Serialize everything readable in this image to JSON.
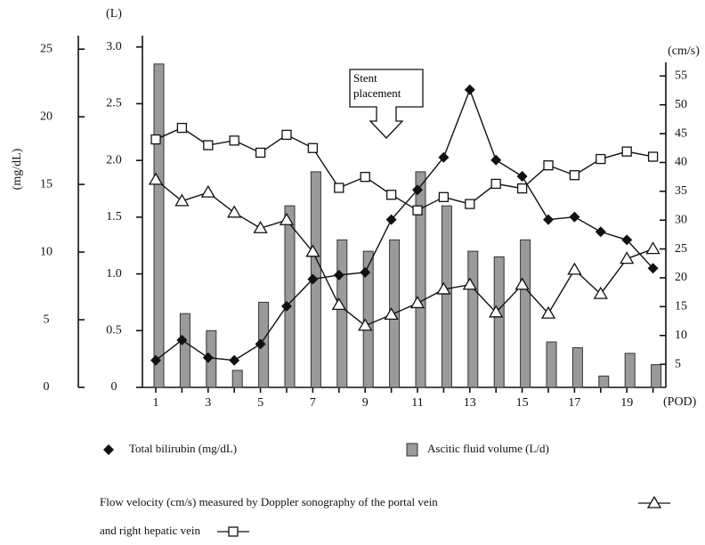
{
  "chart_data": {
    "type": "combo",
    "categories": [
      1,
      null,
      3,
      null,
      5,
      null,
      7,
      null,
      9,
      null,
      11,
      null,
      13,
      null,
      15,
      null,
      17,
      null,
      19,
      null
    ],
    "x_label": "(POD)",
    "ylabel": "(mg/dL)",
    "y3label": "(L)",
    "y2label": "(cm/s)",
    "ylim": [
      0,
      26
    ],
    "yticks": [
      0,
      5,
      10,
      15,
      20,
      25
    ],
    "y3lim": [
      0,
      3.1
    ],
    "y3ticks": [
      0,
      0.5,
      {
        "value": 1,
        "label": "1.0"
      },
      1.5,
      {
        "value": 2,
        "label": "2.0"
      },
      2.5,
      {
        "value": 3,
        "label": "3.0"
      }
    ],
    "y2lim": [
      1,
      62
    ],
    "y2ticks": [
      5,
      10,
      15,
      20,
      25,
      30,
      35,
      40,
      45,
      50,
      55
    ],
    "annotation": "Stent placement",
    "series": [
      {
        "name": "Ascitic fluid volume (L/d)",
        "type": "bar",
        "axis": "y3",
        "color": "#9a9a9a",
        "values": [
          2.85,
          0.65,
          0.5,
          0.15,
          0.75,
          1.6,
          1.9,
          1.3,
          1.2,
          1.3,
          1.9,
          1.6,
          1.2,
          1.15,
          1.3,
          0.4,
          0.35,
          0.1,
          0.3,
          0.2
        ]
      },
      {
        "name": "Total bilirubin (mg/dL)",
        "type": "line",
        "marker": "diamond",
        "axis": "y",
        "color": "#111111",
        "values": [
          2,
          3.5,
          2.2,
          2,
          3.2,
          6,
          8,
          8.3,
          8.5,
          12.4,
          14.6,
          17,
          22,
          16.8,
          15.6,
          12.4,
          12.6,
          11.5,
          10.9,
          8.8
        ]
      },
      {
        "name": "Flow velocity (cm/s) measured by Doppler sonography of the portal vein",
        "type": "line",
        "marker": "triangle",
        "axis": "y2",
        "color": "#111111",
        "values": [
          37,
          33.3,
          34.8,
          31.3,
          28.6,
          30,
          24.5,
          15.3,
          11.7,
          13.6,
          15.6,
          18,
          18.8,
          14,
          18.8,
          13.8,
          21.4,
          17.2,
          23.3,
          25
        ]
      },
      {
        "name": "and right hepatic vein",
        "type": "line",
        "marker": "square",
        "axis": "y2",
        "color": "#111111",
        "values": [
          44,
          46,
          43,
          43.8,
          41.7,
          44.8,
          42.5,
          35.6,
          37.5,
          34.4,
          31.7,
          34,
          32.8,
          36.3,
          35.5,
          39.5,
          37.8,
          40.6,
          41.9,
          41
        ]
      }
    ]
  }
}
